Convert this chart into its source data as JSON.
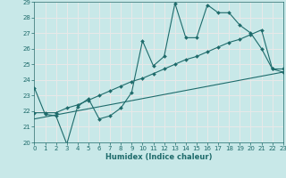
{
  "xlabel": "Humidex (Indice chaleur)",
  "xlim": [
    0,
    23
  ],
  "ylim": [
    20,
    29
  ],
  "xticks": [
    0,
    1,
    2,
    3,
    4,
    5,
    6,
    7,
    8,
    9,
    10,
    11,
    12,
    13,
    14,
    15,
    16,
    17,
    18,
    19,
    20,
    21,
    22,
    23
  ],
  "yticks": [
    20,
    21,
    22,
    23,
    24,
    25,
    26,
    27,
    28,
    29
  ],
  "bg_color": "#c8e8e8",
  "line_color": "#1e6b6b",
  "grid_color": "#e8e8e8",
  "line1_x": [
    0,
    1,
    2,
    3,
    4,
    5,
    6,
    7,
    8,
    9,
    10,
    11,
    12,
    13,
    14,
    15,
    16,
    17,
    18,
    19,
    20,
    21,
    22,
    23
  ],
  "line1_y": [
    23.5,
    21.8,
    21.7,
    19.9,
    22.3,
    22.8,
    21.5,
    21.7,
    22.2,
    23.2,
    26.5,
    24.9,
    25.5,
    28.9,
    26.7,
    26.7,
    28.8,
    28.3,
    28.3,
    27.5,
    27.0,
    26.0,
    24.7,
    24.7
  ],
  "line2_x": [
    0,
    1,
    2,
    3,
    4,
    5,
    6,
    7,
    8,
    9,
    10,
    11,
    12,
    13,
    14,
    15,
    16,
    17,
    18,
    19,
    20,
    21,
    22,
    23
  ],
  "line2_y": [
    21.9,
    21.9,
    21.9,
    22.2,
    22.4,
    22.7,
    23.0,
    23.3,
    23.6,
    23.9,
    24.1,
    24.4,
    24.7,
    25.0,
    25.3,
    25.5,
    25.8,
    26.1,
    26.4,
    26.6,
    26.9,
    27.2,
    24.7,
    24.5
  ],
  "line3_x": [
    0,
    23
  ],
  "line3_y": [
    21.5,
    24.5
  ]
}
